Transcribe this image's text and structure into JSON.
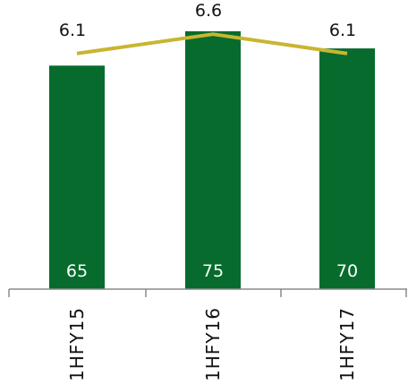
{
  "chart_data": {
    "type": "bar",
    "categories": [
      "1HFY15",
      "1HFY16",
      "1HFY17"
    ],
    "series": [
      {
        "type": "bar",
        "values": [
          65,
          75,
          70
        ]
      },
      {
        "type": "line",
        "values": [
          6.1,
          6.6,
          6.1
        ]
      }
    ],
    "bar_labels": [
      "65",
      "75",
      "70"
    ],
    "line_labels": [
      "6.1",
      "6.6",
      "6.1"
    ],
    "bar_ylim": [
      0,
      82
    ],
    "line_ylim": [
      0,
      7.3
    ],
    "colors": {
      "bar": "#076b2d",
      "line": "#c9b531",
      "axis": "#8a8a8a"
    },
    "grid": false,
    "legend": "none"
  }
}
